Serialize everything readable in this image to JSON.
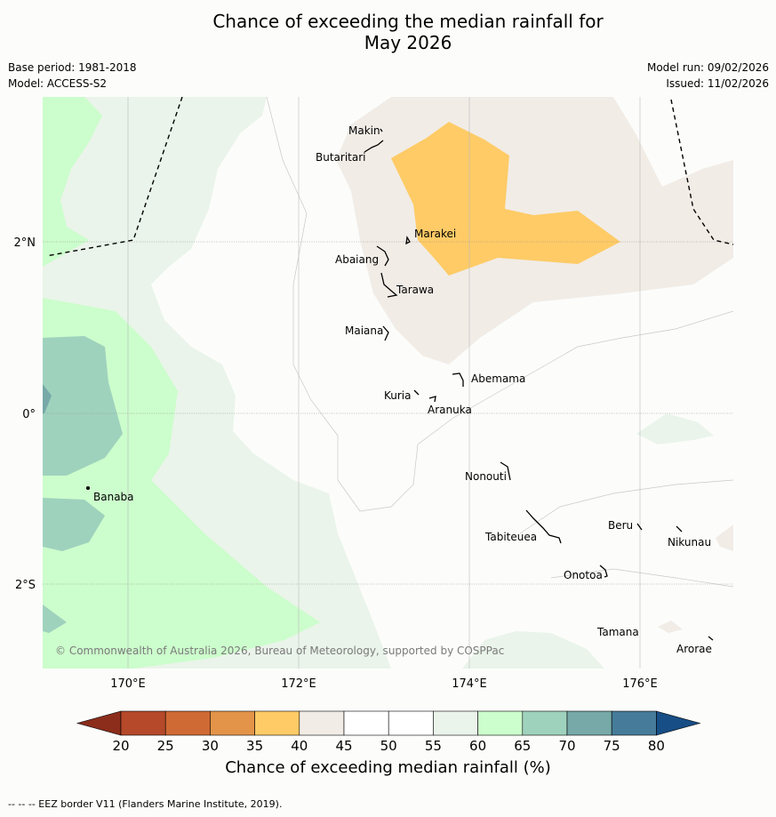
{
  "title": {
    "line1": "Chance of exceeding the median rainfall for",
    "line2": "May 2026"
  },
  "meta": {
    "base_period": "Base period: 1981-2018",
    "model": "Model: ACCESS-S2",
    "model_run": "Model run: 09/02/2026",
    "issued": "Issued: 11/02/2026"
  },
  "axes": {
    "lat_labels": [
      "2°N",
      "0°",
      "2°S"
    ],
    "lon_labels": [
      "170°E",
      "172°E",
      "174°E",
      "176°E"
    ]
  },
  "islands": [
    "Makin",
    "Butaritari",
    "Marakei",
    "Abaiang",
    "Tarawa",
    "Maiana",
    "Abemama",
    "Kuria",
    "Aranuka",
    "Banaba",
    "Nonouti",
    "Beru",
    "Tabiteuea",
    "Nikunau",
    "Onotoa",
    "Tamana",
    "Arorae"
  ],
  "copyright": "© Commonwealth of Australia 2026, Bureau of Meteorology, supported by COSPPac",
  "colorbar": {
    "title": "Chance of exceeding median rainfall (%)",
    "ticks": [
      "20",
      "25",
      "30",
      "35",
      "40",
      "45",
      "50",
      "55",
      "60",
      "65",
      "70",
      "75",
      "80"
    ],
    "colors": {
      "below_20": "#8c2d1b",
      "20_25": "#b5492a",
      "25_30": "#d06a35",
      "30_35": "#e39448",
      "35_40": "#fecb66",
      "40_45": "#f1ece6",
      "45_50": "#ffffff",
      "50_55": "#ffffff",
      "55_60": "#eaf4ea",
      "60_65": "#ccfdcc",
      "65_70": "#9fd2bd",
      "70_75": "#76a9a8",
      "75_80": "#467c99",
      "above_80": "#174e85"
    }
  },
  "footnote": "--  --  -- EEZ border V11 (Flanders Marine Institute, 2019)."
}
